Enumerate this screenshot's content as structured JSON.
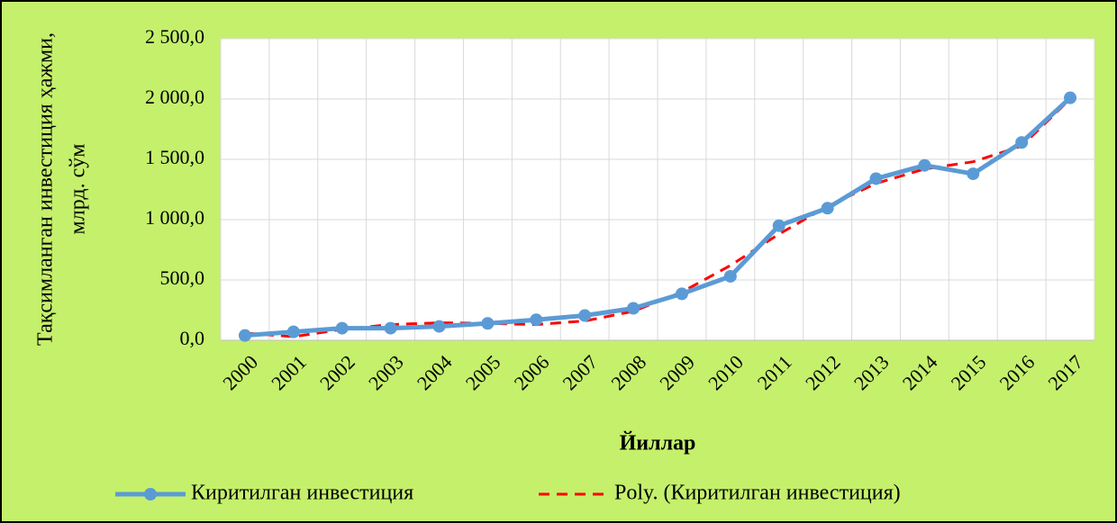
{
  "chart_data": {
    "type": "line",
    "x_label": "Йиллар",
    "y_label": [
      "Тақсимланган инвестиция ҳажми,",
      "млрд. сўм"
    ],
    "categories": [
      "2000",
      "2001",
      "2002",
      "2003",
      "2004",
      "2005",
      "2006",
      "2007",
      "2008",
      "2009",
      "2010",
      "2011",
      "2012",
      "2013",
      "2014",
      "2015",
      "2016",
      "2017"
    ],
    "series": [
      {
        "name": "Киритилган инвестиция",
        "color": "#5b9bd5",
        "style": "solid-markers",
        "values": [
          40,
          70,
          100,
          100,
          115,
          140,
          170,
          205,
          265,
          385,
          530,
          950,
          1095,
          1340,
          1450,
          1380,
          1640,
          2010
        ]
      },
      {
        "name": "Poly. (Киритилган инвестиция)",
        "color": "#ff0000",
        "style": "dashed",
        "values": [
          60,
          30,
          90,
          130,
          145,
          140,
          130,
          160,
          240,
          400,
          620,
          880,
          1110,
          1300,
          1420,
          1480,
          1610,
          2000
        ]
      }
    ],
    "ylim": [
      0,
      2500
    ],
    "yticks": [
      {
        "value": 0,
        "label": "0,0"
      },
      {
        "value": 500,
        "label": "500,0"
      },
      {
        "value": 1000,
        "label": "1 000,0"
      },
      {
        "value": 1500,
        "label": "1 500,0"
      },
      {
        "value": 2000,
        "label": "2 000,0"
      },
      {
        "value": 2500,
        "label": "2 500,0"
      }
    ],
    "grid": true,
    "legend": "bottom"
  }
}
